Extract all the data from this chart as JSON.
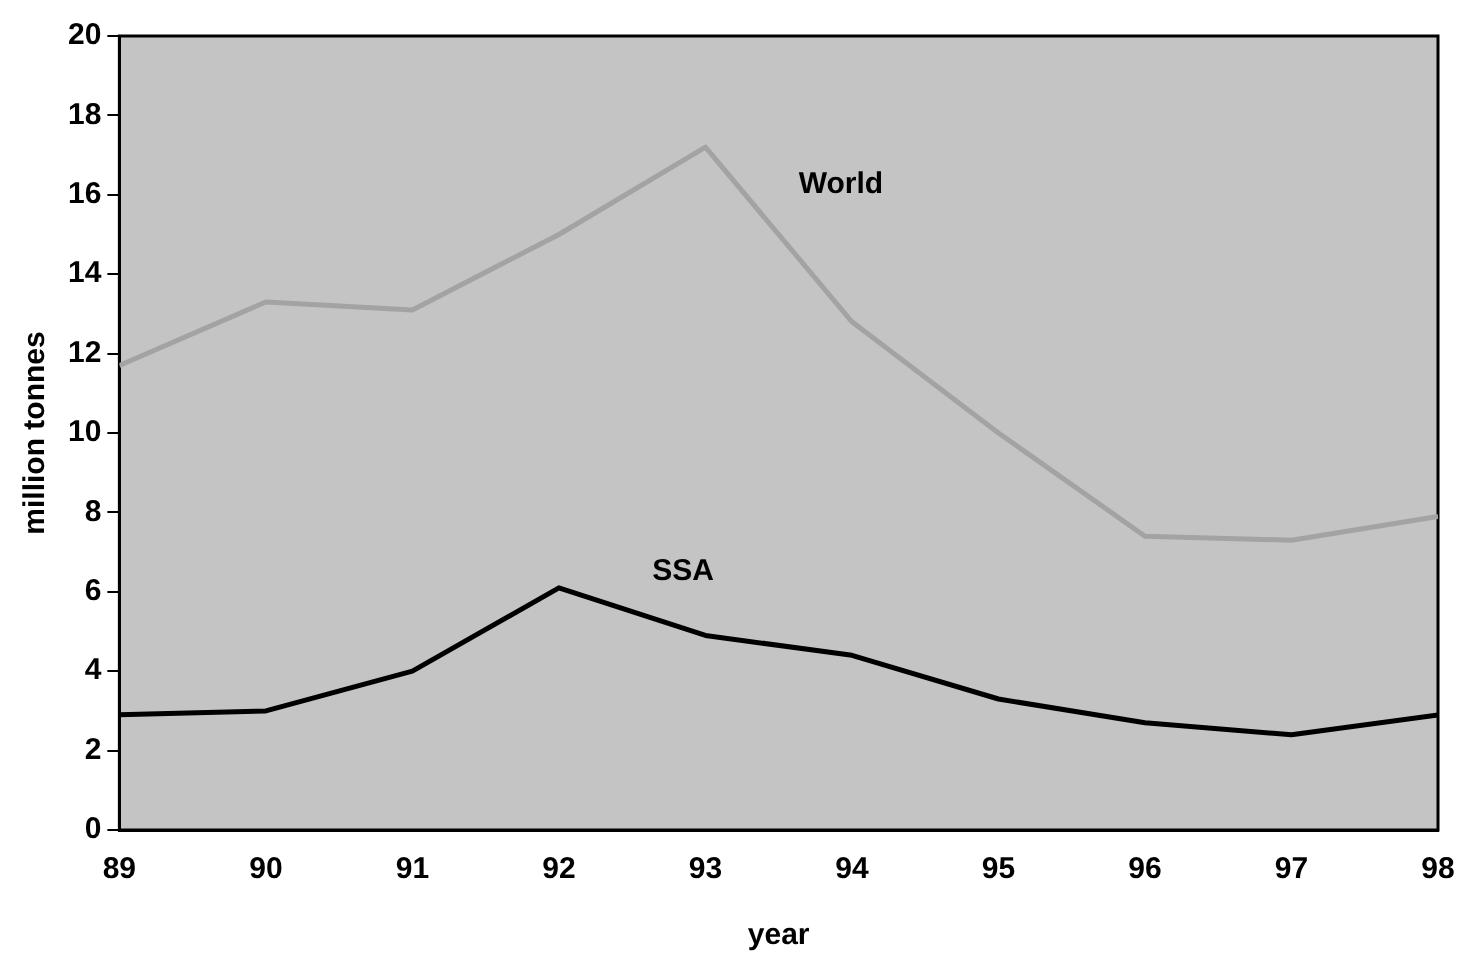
{
  "chart_data": {
    "type": "line",
    "xlabel": "year",
    "ylabel": "million tonnes",
    "x": [
      89,
      90,
      91,
      92,
      93,
      94,
      95,
      96,
      97,
      98
    ],
    "series": [
      {
        "name": "World",
        "color": "#a3a3a3",
        "values": [
          11.7,
          13.3,
          13.1,
          15.0,
          17.2,
          12.8,
          10.0,
          7.4,
          7.3,
          7.9
        ]
      },
      {
        "name": "SSA",
        "color": "#000000",
        "values": [
          2.9,
          3.0,
          4.0,
          6.1,
          4.9,
          4.4,
          3.3,
          2.7,
          2.4,
          2.9
        ]
      }
    ],
    "xlim": [
      89,
      98
    ],
    "xticks": [
      89,
      90,
      91,
      92,
      93,
      94,
      95,
      96,
      97,
      98
    ],
    "ylim": [
      0,
      20
    ],
    "yticks": [
      0,
      2,
      4,
      6,
      8,
      10,
      12,
      14,
      16,
      18,
      20
    ],
    "grid": false,
    "legend": false,
    "marker": "none",
    "line_style": "solid"
  }
}
